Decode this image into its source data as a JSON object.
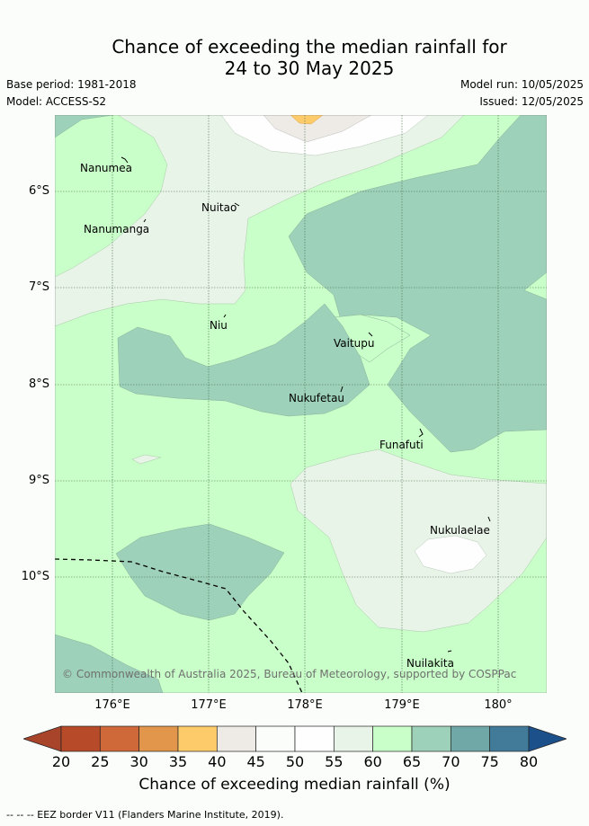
{
  "title_line1": "Chance of exceeding the median rainfall for",
  "title_line2": "24 to 30 May 2025",
  "base_period": "Base period: 1981-2018",
  "model": "Model: ACCESS-S2",
  "model_run": "Model run: 10/05/2025",
  "issued": "Issued: 12/05/2025",
  "map": {
    "lat_labels": [
      "6°S",
      "7°S",
      "8°S",
      "9°S",
      "10°S"
    ],
    "lon_labels": [
      "176°E",
      "177°E",
      "178°E",
      "179°E",
      "180°"
    ],
    "places": [
      "Nanumea",
      "Nuitao",
      "Nanumanga",
      "Niu",
      "Vaitupu",
      "Nukufetau",
      "Funafuti",
      "Nukulaelae",
      "Nuilakita"
    ],
    "copyright": "© Commonwealth of Australia 2025, Bureau of Meteorology, supported by COSPPac"
  },
  "colorbar": {
    "ticks": [
      "20",
      "25",
      "30",
      "35",
      "40",
      "45",
      "50",
      "55",
      "60",
      "65",
      "70",
      "75",
      "80"
    ],
    "colors": [
      "#b64a29",
      "#d0693a",
      "#e2964b",
      "#fecb6a",
      "#eeebe6",
      "#fbfdfb",
      "#fdfefd",
      "#e9f4e8",
      "#c9ffc8",
      "#9dd1b9",
      "#70a8a7",
      "#427b9a"
    ],
    "under_color": "#a8442a",
    "over_color": "#1c508a",
    "title": "Chance of exceeding median rainfall (%)"
  },
  "legend_note": "-- -- -- EEZ border V11 (Flanders Marine Institute, 2019)."
}
